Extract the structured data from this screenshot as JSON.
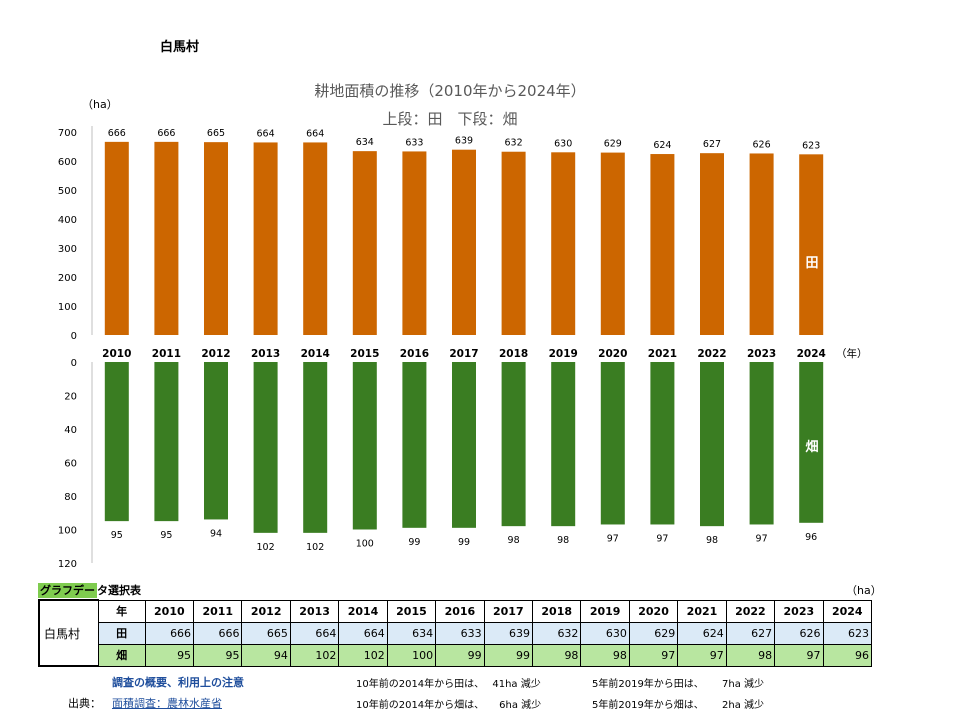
{
  "village": "白馬村",
  "chart_data": {
    "type": "bar",
    "title": "耕地面積の推移（2010年から2024年）",
    "subtitle": "上段：田　下段：畑",
    "ylabel": "（ha）",
    "xlabel": "（年）",
    "categories": [
      "2010",
      "2011",
      "2012",
      "2013",
      "2014",
      "2015",
      "2016",
      "2017",
      "2018",
      "2019",
      "2020",
      "2021",
      "2022",
      "2023",
      "2024"
    ],
    "series": [
      {
        "name": "田",
        "color": "#cc6600",
        "ylim": [
          0,
          700
        ],
        "ticks": [
          0,
          100,
          200,
          300,
          400,
          500,
          600,
          700
        ],
        "values": [
          666,
          666,
          665,
          664,
          664,
          634,
          633,
          639,
          632,
          630,
          629,
          624,
          627,
          626,
          623
        ]
      },
      {
        "name": "畑",
        "color": "#3a7d22",
        "ylim": [
          0,
          120
        ],
        "ticks": [
          0,
          20,
          40,
          60,
          80,
          100,
          120
        ],
        "values": [
          95,
          95,
          94,
          102,
          102,
          100,
          99,
          99,
          98,
          98,
          97,
          97,
          98,
          97,
          96
        ]
      }
    ]
  },
  "table": {
    "label_main": "グラフデー",
    "label_rest": "タ選択表",
    "unit": "（ha）",
    "year_header": "年",
    "row_name": "白馬村",
    "rice_label": "田",
    "field_label": "畑"
  },
  "footer": {
    "notes_link": "調査の概要、利用上の注意",
    "source_label": "出典：",
    "source_link": "面積調査：農林水産省",
    "rice_10y": "10年前の2014年から田は、　 41ha 減少",
    "field_10y": "10年前の2014年から畑は、　　6ha 減少",
    "rice_5y": "5年前2019年から田は、　　 7ha 減少",
    "field_5y": "5年前2019年から畑は、　　 2ha 減少"
  }
}
